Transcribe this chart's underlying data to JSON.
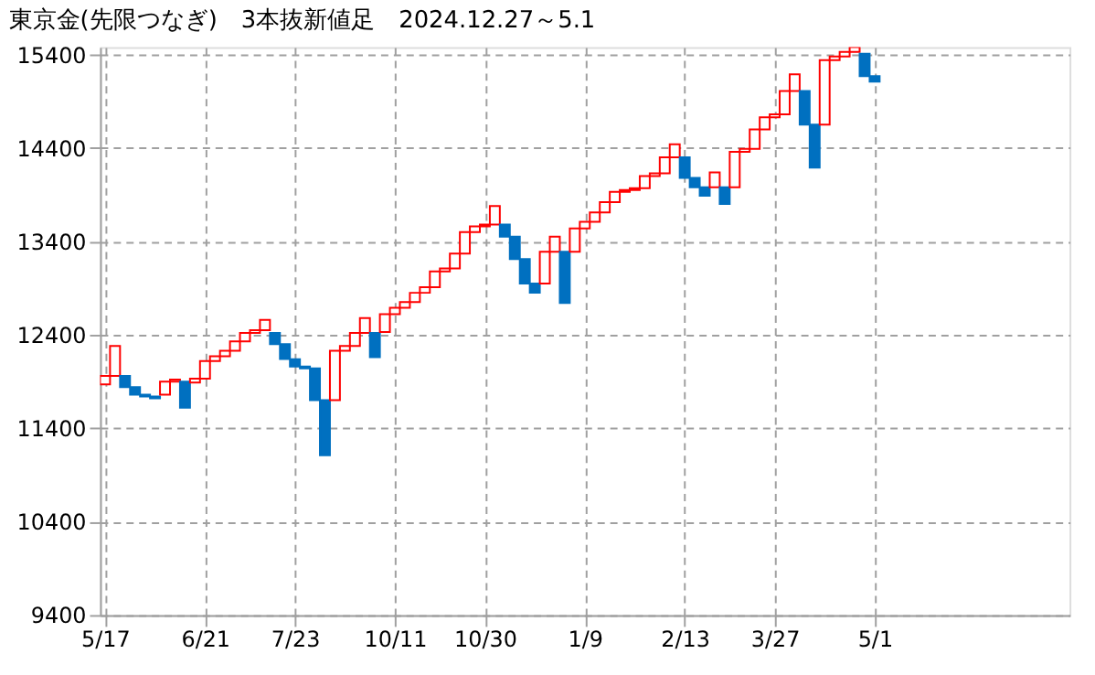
{
  "chart_data": {
    "type": "bar",
    "title": "東京金(先限つなぎ)　3本抜新値足　2024.12.27～5.1",
    "categories": [
      "5/17",
      null,
      null,
      null,
      null,
      null,
      null,
      null,
      null,
      null,
      "6/21",
      null,
      null,
      null,
      null,
      null,
      null,
      null,
      null,
      "7/23",
      null,
      null,
      null,
      null,
      null,
      null,
      null,
      null,
      null,
      "10/11",
      null,
      null,
      null,
      null,
      null,
      null,
      null,
      null,
      "10/30",
      null,
      null,
      null,
      null,
      null,
      null,
      null,
      null,
      null,
      "1/9",
      null,
      null,
      null,
      null,
      null,
      null,
      null,
      null,
      null,
      "2/13",
      null,
      null,
      null,
      null,
      null,
      null,
      null,
      null,
      "3/27",
      null,
      null,
      null,
      null,
      null,
      null,
      null,
      null,
      null,
      "5/1",
      null,
      null,
      null,
      null,
      null,
      null,
      null,
      null,
      null,
      null,
      null,
      null,
      null,
      null,
      null,
      null,
      null,
      null,
      null
    ],
    "base": [
      11870,
      11960,
      11960,
      11840,
      11760,
      11740,
      11760,
      11900,
      11900,
      11890,
      11930,
      12120,
      12170,
      12230,
      12330,
      12420,
      12450,
      12420,
      12300,
      12140,
      12060,
      12040,
      11700,
      11700,
      12230,
      12280,
      12420,
      12420,
      12430,
      12620,
      12690,
      12750,
      12850,
      12910,
      13080,
      13110,
      13270,
      13500,
      13560,
      13580,
      13580,
      13450,
      13210,
      12950,
      12950,
      13290,
      13290,
      13290,
      13540,
      13610,
      13710,
      13820,
      13930,
      13950,
      13970,
      14100,
      14130,
      14300,
      14300,
      14080,
      13980,
      13980,
      13980,
      13980,
      14360,
      14390,
      14600,
      14730,
      14760,
      15010,
      15010,
      14650,
      14650,
      15340,
      15380,
      15430,
      15410,
      15170,
      null,
      null,
      null,
      null,
      null,
      null,
      null,
      null,
      null,
      null,
      null,
      null,
      null,
      null,
      null,
      null,
      null,
      null,
      null
    ],
    "values": [
      90,
      320,
      -120,
      -80,
      -20,
      -20,
      140,
      20,
      -280,
      40,
      190,
      50,
      60,
      100,
      90,
      30,
      110,
      -120,
      -160,
      -80,
      -20,
      -340,
      -590,
      530,
      50,
      140,
      160,
      -260,
      190,
      70,
      60,
      100,
      60,
      170,
      30,
      160,
      230,
      60,
      20,
      200,
      -130,
      -240,
      -260,
      -100,
      340,
      160,
      -550,
      250,
      70,
      100,
      110,
      110,
      20,
      20,
      130,
      30,
      170,
      140,
      -220,
      -100,
      -90,
      160,
      -180,
      380,
      30,
      210,
      130,
      30,
      250,
      180,
      -360,
      -460,
      690,
      40,
      50,
      50,
      -240,
      -60,
      null,
      null,
      null,
      null,
      null,
      null,
      null,
      null,
      null,
      null,
      null,
      null,
      null,
      null,
      null,
      null,
      null,
      null,
      null
    ],
    "colors": [
      "#ff0000",
      "#ff0000",
      "#0070c0",
      "#0070c0",
      "#0070c0",
      "#0070c0",
      "#ff0000",
      "#ff0000",
      "#0070c0",
      "#ff0000",
      "#ff0000",
      "#ff0000",
      "#ff0000",
      "#ff0000",
      "#ff0000",
      "#ff0000",
      "#ff0000",
      "#0070c0",
      "#0070c0",
      "#0070c0",
      "#0070c0",
      "#0070c0",
      "#0070c0",
      "#ff0000",
      "#ff0000",
      "#ff0000",
      "#ff0000",
      "#0070c0",
      "#ff0000",
      "#ff0000",
      "#ff0000",
      "#ff0000",
      "#ff0000",
      "#ff0000",
      "#ff0000",
      "#ff0000",
      "#ff0000",
      "#ff0000",
      "#ff0000",
      "#ff0000",
      "#0070c0",
      "#0070c0",
      "#0070c0",
      "#0070c0",
      "#ff0000",
      "#ff0000",
      "#0070c0",
      "#ff0000",
      "#ff0000",
      "#ff0000",
      "#ff0000",
      "#ff0000",
      "#ff0000",
      "#ff0000",
      "#ff0000",
      "#ff0000",
      "#ff0000",
      "#ff0000",
      "#0070c0",
      "#0070c0",
      "#0070c0",
      "#ff0000",
      "#0070c0",
      "#ff0000",
      "#ff0000",
      "#ff0000",
      "#ff0000",
      "#ff0000",
      "#ff0000",
      "#ff0000",
      "#0070c0",
      "#0070c0",
      "#ff0000",
      "#ff0000",
      "#ff0000",
      "#ff0000",
      "#0070c0",
      "#0070c0",
      null,
      null,
      null,
      null,
      null,
      null,
      null,
      null,
      null,
      null,
      null,
      null,
      null,
      null,
      null,
      null,
      null,
      null,
      null
    ],
    "ylim": [
      9400,
      15480
    ],
    "yticks": [
      9400,
      10400,
      11400,
      12400,
      13400,
      14400,
      15400
    ],
    "grid": true
  }
}
